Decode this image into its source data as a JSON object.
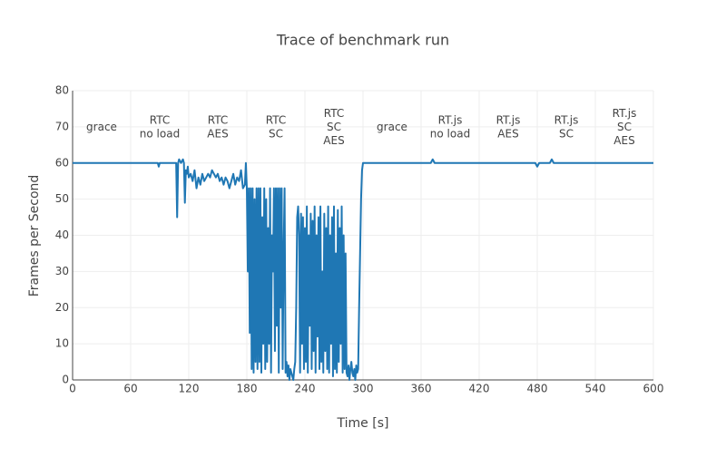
{
  "chart_data": {
    "type": "line",
    "title": "Trace of benchmark run",
    "xlabel": "Time [s]",
    "ylabel": "Frames per Second",
    "xlim": [
      0,
      600
    ],
    "xticks": [
      0,
      60,
      120,
      180,
      240,
      300,
      360,
      420,
      480,
      540,
      600
    ],
    "ylim": [
      0,
      80
    ],
    "yticks": [
      0,
      10,
      20,
      30,
      40,
      50,
      60,
      70,
      80
    ],
    "grid": true,
    "annotations": [
      [
        "grace"
      ],
      [
        "RTC",
        "no load"
      ],
      [
        "RTC",
        "AES"
      ],
      [
        "RTC",
        "SC"
      ],
      [
        "RTC",
        "SC",
        "AES"
      ],
      [
        "grace"
      ],
      [
        "RT.js",
        "no load"
      ],
      [
        "RT.js",
        "AES"
      ],
      [
        "RT.js",
        "SC"
      ],
      [
        "RT.js",
        "SC",
        "AES"
      ]
    ],
    "x": [
      0,
      88,
      89,
      90,
      107,
      108,
      109,
      110,
      112,
      114,
      115,
      116,
      117,
      118,
      119,
      120,
      122,
      124,
      126,
      128,
      130,
      132,
      134,
      136,
      138,
      140,
      142,
      144,
      146,
      148,
      150,
      152,
      154,
      156,
      158,
      160,
      162,
      164,
      166,
      168,
      170,
      172,
      174,
      176,
      178,
      179,
      180,
      181,
      182,
      183,
      184,
      185,
      186,
      187,
      188,
      189,
      190,
      191,
      192,
      193,
      194,
      195,
      196,
      197,
      198,
      199,
      200,
      201,
      202,
      203,
      204,
      205,
      206,
      207,
      208,
      209,
      210,
      211,
      212,
      213,
      214,
      215,
      216,
      217,
      218,
      219,
      220,
      221,
      222,
      223,
      224,
      225,
      226,
      227,
      228,
      229,
      230,
      231,
      232,
      233,
      234,
      235,
      236,
      237,
      238,
      239,
      240,
      241,
      242,
      243,
      244,
      245,
      246,
      247,
      248,
      249,
      250,
      251,
      252,
      253,
      254,
      255,
      256,
      257,
      258,
      259,
      260,
      261,
      262,
      263,
      264,
      265,
      266,
      267,
      268,
      269,
      270,
      271,
      272,
      273,
      274,
      275,
      276,
      277,
      278,
      279,
      280,
      281,
      282,
      283,
      284,
      285,
      286,
      287,
      288,
      289,
      290,
      291,
      292,
      293,
      294,
      295,
      296,
      297,
      298,
      299,
      300,
      301,
      370,
      372,
      374,
      478,
      480,
      482,
      493,
      495,
      497,
      600
    ],
    "series": [
      {
        "name": "fps",
        "color": "#1f77b4",
        "values": [
          60,
          60,
          59,
          60,
          60,
          45,
          60,
          61,
          60,
          61,
          60,
          49,
          58,
          57,
          59,
          56,
          57,
          55,
          58,
          53,
          56,
          54,
          57,
          55,
          56,
          57,
          56,
          58,
          57,
          56,
          57,
          55,
          56,
          54,
          56,
          55,
          53,
          55,
          57,
          54,
          56,
          55,
          58,
          53,
          54,
          60,
          53,
          30,
          53,
          13,
          53,
          3,
          53,
          2,
          50,
          5,
          53,
          3,
          53,
          5,
          53,
          2,
          45,
          10,
          53,
          3,
          50,
          5,
          42,
          10,
          53,
          2,
          40,
          30,
          53,
          8,
          53,
          15,
          53,
          2,
          53,
          20,
          53,
          3,
          35,
          53,
          2,
          5,
          1,
          4,
          0,
          3,
          2,
          1,
          0,
          3,
          5,
          20,
          45,
          48,
          40,
          2,
          46,
          10,
          45,
          3,
          42,
          5,
          48,
          2,
          40,
          15,
          46,
          3,
          44,
          8,
          48,
          2,
          40,
          12,
          45,
          3,
          48,
          5,
          30,
          2,
          46,
          8,
          42,
          3,
          48,
          2,
          40,
          10,
          45,
          1,
          48,
          3,
          35,
          2,
          47,
          5,
          42,
          10,
          48,
          2,
          40,
          3,
          35,
          2,
          1,
          4,
          0,
          3,
          5,
          2,
          1,
          3,
          0,
          4,
          2,
          3,
          20,
          35,
          50,
          58,
          60,
          60,
          60,
          61,
          60,
          60,
          59,
          60,
          60,
          61,
          60,
          60
        ]
      }
    ]
  }
}
